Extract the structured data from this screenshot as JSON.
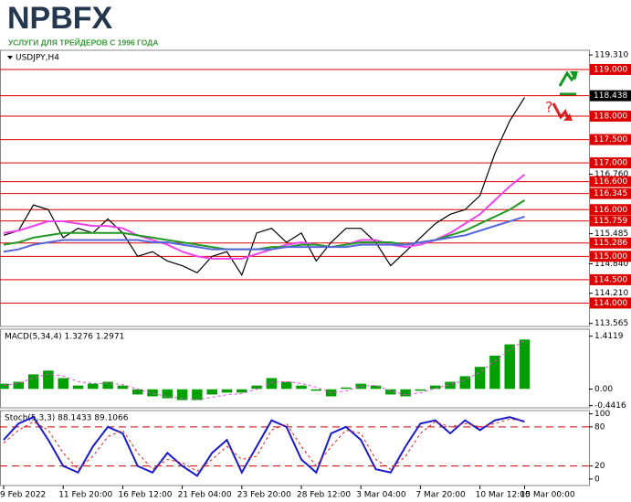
{
  "header": {
    "logo": "NPBFX",
    "tagline": "УСЛУГИ ДЛЯ ТРЕЙДЕРОВ С 1996 ГОДА"
  },
  "chart_data": [
    {
      "type": "line",
      "title": "USDJPY,H4",
      "categories": [
        "9 Feb 2022",
        null,
        null,
        null,
        "11 Feb 20:00",
        null,
        null,
        null,
        "16 Feb 12:00",
        null,
        null,
        null,
        "21 Feb 04:00",
        null,
        null,
        null,
        "23 Feb 20:00",
        null,
        null,
        null,
        "28 Feb 12:00",
        null,
        null,
        null,
        "3 Mar 04:00",
        null,
        null,
        null,
        "7 Mar 20:00",
        null,
        null,
        null,
        "10 Mar 12:00",
        null,
        null,
        "15 Mar 00:00"
      ],
      "series": [
        {
          "color": "#000000",
          "values": [
            115.45,
            115.55,
            116.1,
            116.0,
            115.4,
            115.6,
            115.5,
            115.8,
            115.5,
            115.0,
            115.1,
            114.9,
            114.8,
            114.65,
            115.0,
            115.1,
            114.6,
            115.5,
            115.6,
            115.3,
            115.5,
            114.9,
            115.3,
            115.6,
            115.6,
            115.3,
            114.8,
            115.1,
            115.4,
            115.7,
            115.9,
            116.0,
            116.3,
            117.2,
            117.9,
            118.4
          ]
        },
        {
          "color": "#ee44ee",
          "values": [
            115.5,
            115.55,
            115.65,
            115.75,
            115.75,
            115.7,
            115.65,
            115.65,
            115.6,
            115.45,
            115.35,
            115.25,
            115.1,
            115.0,
            114.95,
            114.95,
            114.95,
            115.05,
            115.15,
            115.25,
            115.3,
            115.25,
            115.2,
            115.25,
            115.35,
            115.35,
            115.25,
            115.2,
            115.25,
            115.35,
            115.5,
            115.7,
            115.9,
            116.2,
            116.5,
            116.75
          ]
        },
        {
          "color": "#229922",
          "values": [
            115.25,
            115.3,
            115.4,
            115.45,
            115.5,
            115.5,
            115.5,
            115.5,
            115.5,
            115.45,
            115.4,
            115.35,
            115.3,
            115.25,
            115.2,
            115.15,
            115.15,
            115.15,
            115.2,
            115.2,
            115.25,
            115.25,
            115.2,
            115.25,
            115.3,
            115.3,
            115.3,
            115.25,
            115.3,
            115.35,
            115.45,
            115.55,
            115.7,
            115.85,
            116.0,
            116.2
          ]
        },
        {
          "color": "#5566dd",
          "values": [
            115.1,
            115.15,
            115.25,
            115.3,
            115.35,
            115.35,
            115.35,
            115.35,
            115.35,
            115.35,
            115.3,
            115.3,
            115.25,
            115.2,
            115.15,
            115.15,
            115.15,
            115.15,
            115.15,
            115.2,
            115.2,
            115.2,
            115.2,
            115.2,
            115.25,
            115.25,
            115.25,
            115.25,
            115.3,
            115.35,
            115.4,
            115.45,
            115.55,
            115.65,
            115.75,
            115.85
          ]
        }
      ],
      "ylim": [
        113.5,
        119.41
      ],
      "yticks": [
        {
          "value": 119.31,
          "label": "119.310"
        },
        {
          "value": 116.76,
          "label": "116.760"
        },
        115.485,
        {
          "value": 114.84,
          "label": "114.840"
        },
        {
          "value": 114.21,
          "label": "114.210"
        },
        113.565
      ],
      "levels": [
        {
          "value": 119,
          "label": "119.000"
        },
        {
          "value": 118,
          "label": "118.000"
        },
        {
          "value": 117.5,
          "label": "117.500"
        },
        {
          "value": 117,
          "label": "117.000"
        },
        {
          "value": 116.6,
          "label": "116.600"
        },
        116.345,
        {
          "value": 116,
          "label": "116.000"
        },
        115.759,
        115.286,
        {
          "value": 115,
          "label": "115.000"
        },
        {
          "value": 114.5,
          "label": "114.500"
        },
        {
          "value": 114,
          "label": "114.000"
        }
      ],
      "level_color": "#dd0000",
      "last_price": 118.438,
      "annotation": "?"
    },
    {
      "type": "macd",
      "title": "MACD(5,34,4) 1.3276 1.2971",
      "series": [
        {
          "type": "bar",
          "color": "#00a000",
          "values": [
            0.15,
            0.2,
            0.4,
            0.5,
            0.3,
            0.1,
            0.15,
            0.2,
            0.1,
            -0.15,
            -0.2,
            -0.25,
            -0.3,
            -0.3,
            -0.15,
            -0.1,
            -0.1,
            0.1,
            0.3,
            0.2,
            0.1,
            -0.05,
            -0.2,
            0.05,
            0.15,
            0.1,
            -0.15,
            -0.2,
            -0.05,
            0.1,
            0.2,
            0.35,
            0.6,
            0.9,
            1.2,
            1.33
          ]
        },
        {
          "type": "line",
          "dash": true,
          "color": "#ee44ee",
          "values": [
            0.1,
            0.15,
            0.3,
            0.4,
            0.35,
            0.2,
            0.15,
            0.15,
            0.12,
            0.0,
            -0.12,
            -0.2,
            -0.25,
            -0.28,
            -0.22,
            -0.15,
            -0.12,
            0.0,
            0.18,
            0.2,
            0.15,
            0.05,
            -0.1,
            -0.05,
            0.08,
            0.1,
            -0.05,
            -0.15,
            -0.1,
            0.02,
            0.12,
            0.25,
            0.45,
            0.75,
            1.05,
            1.3
          ]
        }
      ],
      "ylim": [
        -0.5,
        1.6
      ],
      "yticks": [
        1.4119,
        {
          "value": 0,
          "label": "0.00"
        },
        -0.4416
      ]
    },
    {
      "type": "stochastic",
      "title": "Stoch(5,3,3) 88.1433 89.1066",
      "series": [
        {
          "type": "line",
          "color": "#1a1acc",
          "values": [
            60,
            85,
            95,
            60,
            20,
            10,
            50,
            80,
            70,
            20,
            10,
            40,
            20,
            5,
            40,
            60,
            10,
            50,
            90,
            80,
            30,
            10,
            70,
            80,
            60,
            15,
            10,
            50,
            85,
            90,
            70,
            90,
            75,
            90,
            95,
            88
          ]
        },
        {
          "type": "line",
          "dash": true,
          "color": "#dd2222",
          "values": [
            55,
            75,
            88,
            75,
            40,
            15,
            35,
            65,
            75,
            40,
            15,
            30,
            25,
            12,
            30,
            50,
            30,
            35,
            75,
            85,
            50,
            20,
            50,
            75,
            70,
            30,
            15,
            35,
            70,
            88,
            80,
            85,
            80,
            85,
            92,
            89
          ]
        }
      ],
      "ylim": [
        -10,
        105
      ],
      "yticks": [
        100,
        80,
        20,
        0
      ],
      "levels": [
        80,
        20
      ],
      "level_color": "#cc0000"
    }
  ]
}
